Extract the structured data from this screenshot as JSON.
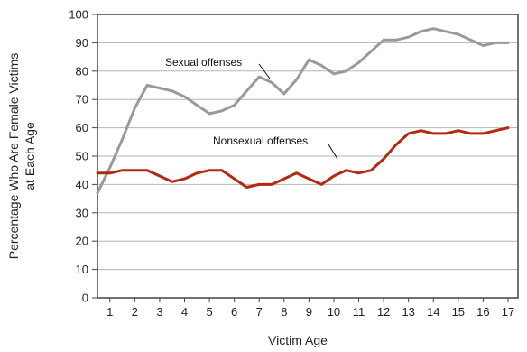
{
  "chart_data": {
    "type": "line",
    "title": "",
    "xlabel": "Victim Age",
    "ylabel_line1": "Percentage Who Are Female Victims",
    "ylabel_line2": "at Each Age",
    "ylim": [
      0,
      100
    ],
    "y_ticks": [
      "0",
      "10",
      "20",
      "30",
      "40",
      "50",
      "60",
      "70",
      "80",
      "90",
      "100"
    ],
    "x_ticks": [
      "1",
      "2",
      "3",
      "4",
      "5",
      "6",
      "7",
      "8",
      "9",
      "10",
      "11",
      "12",
      "13",
      "14",
      "15",
      "16",
      "17"
    ],
    "xlim": [
      0.5,
      17.4
    ],
    "grid": true,
    "series": [
      {
        "name": "Sexual offenses",
        "color": "#9a9a9a",
        "points": [
          [
            0.5,
            37
          ],
          [
            1.0,
            46
          ],
          [
            1.5,
            56
          ],
          [
            2.0,
            67
          ],
          [
            2.5,
            75
          ],
          [
            3.0,
            74
          ],
          [
            3.5,
            73
          ],
          [
            4.0,
            71
          ],
          [
            4.5,
            68
          ],
          [
            5.0,
            65
          ],
          [
            5.5,
            66
          ],
          [
            6.0,
            68
          ],
          [
            6.5,
            73
          ],
          [
            7.0,
            78
          ],
          [
            7.5,
            76
          ],
          [
            8.0,
            72
          ],
          [
            8.5,
            77
          ],
          [
            9.0,
            84
          ],
          [
            9.5,
            82
          ],
          [
            10.0,
            79
          ],
          [
            10.5,
            80
          ],
          [
            11.0,
            83
          ],
          [
            11.5,
            87
          ],
          [
            12.0,
            91
          ],
          [
            12.5,
            91
          ],
          [
            13.0,
            92
          ],
          [
            13.5,
            94
          ],
          [
            14.0,
            95
          ],
          [
            14.5,
            94
          ],
          [
            15.0,
            93
          ],
          [
            15.5,
            91
          ],
          [
            16.0,
            89
          ],
          [
            16.5,
            90
          ],
          [
            17.0,
            90
          ]
        ]
      },
      {
        "name": "Nonsexual offenses",
        "color": "#b22a12",
        "points": [
          [
            0.5,
            44
          ],
          [
            1.0,
            44
          ],
          [
            1.5,
            45
          ],
          [
            2.0,
            45
          ],
          [
            2.5,
            45
          ],
          [
            3.0,
            43
          ],
          [
            3.5,
            41
          ],
          [
            4.0,
            42
          ],
          [
            4.5,
            44
          ],
          [
            5.0,
            45
          ],
          [
            5.5,
            45
          ],
          [
            6.0,
            42
          ],
          [
            6.5,
            39
          ],
          [
            7.0,
            40
          ],
          [
            7.5,
            40
          ],
          [
            8.0,
            42
          ],
          [
            8.5,
            44
          ],
          [
            9.0,
            42
          ],
          [
            9.5,
            40
          ],
          [
            10.0,
            43
          ],
          [
            10.5,
            45
          ],
          [
            11.0,
            44
          ],
          [
            11.5,
            45
          ],
          [
            12.0,
            49
          ],
          [
            12.5,
            54
          ],
          [
            13.0,
            58
          ],
          [
            13.5,
            59
          ],
          [
            14.0,
            58
          ],
          [
            14.5,
            58
          ],
          [
            15.0,
            59
          ],
          [
            15.5,
            58
          ],
          [
            16.0,
            58
          ],
          [
            16.5,
            59
          ],
          [
            17.0,
            60
          ]
        ]
      }
    ]
  }
}
